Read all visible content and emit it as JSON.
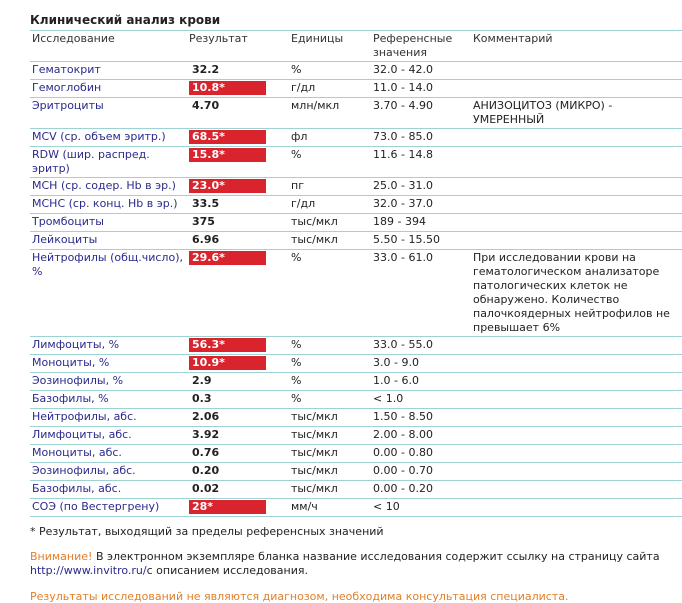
{
  "title": "Клинический анализ крови",
  "headers": {
    "test": "Исследование",
    "result": "Результат",
    "units": "Единицы",
    "ref": "Референсные значения",
    "comment": "Комментарий"
  },
  "rows": [
    {
      "name": "Гематокрит",
      "result": "32.2",
      "flag": false,
      "units": "%",
      "ref": "32.0 - 42.0",
      "comment": ""
    },
    {
      "name": "Гемоглобин",
      "result": "10.8*",
      "flag": true,
      "units": "г/дл",
      "ref": "11.0 - 14.0",
      "comment": ""
    },
    {
      "name": "Эритроциты",
      "result": "4.70",
      "flag": false,
      "units": "млн/мкл",
      "ref": "3.70 - 4.90",
      "comment": "АНИЗОЦИТОЗ (МИКРО) - УМЕРЕННЫЙ"
    },
    {
      "name": "MCV (ср. объем эритр.)",
      "result": "68.5*",
      "flag": true,
      "units": "фл",
      "ref": "73.0 - 85.0",
      "comment": ""
    },
    {
      "name": "RDW (шир. распред. эритр)",
      "result": "15.8*",
      "flag": true,
      "units": "%",
      "ref": "11.6 - 14.8",
      "comment": ""
    },
    {
      "name": "MCH (ср. содер. Hb в эр.)",
      "result": "23.0*",
      "flag": true,
      "units": "пг",
      "ref": "25.0 - 31.0",
      "comment": ""
    },
    {
      "name": "MCHC (ср. конц. Hb в эр.)",
      "result": "33.5",
      "flag": false,
      "units": "г/дл",
      "ref": "32.0 - 37.0",
      "comment": ""
    },
    {
      "name": "Тромбоциты",
      "result": "375",
      "flag": false,
      "units": "тыс/мкл",
      "ref": "189 - 394",
      "comment": ""
    },
    {
      "name": "Лейкоциты",
      "result": "6.96",
      "flag": false,
      "units": "тыс/мкл",
      "ref": "5.50 - 15.50",
      "comment": ""
    },
    {
      "name": "Нейтрофилы (общ.число), %",
      "result": "29.6*",
      "flag": true,
      "units": "%",
      "ref": "33.0 - 61.0",
      "comment": "При исследовании крови на гематологическом анализаторе патологических клеток не обнаружено. Количество палочкоядерных нейтрофилов не превышает 6%"
    },
    {
      "name": "Лимфоциты, %",
      "result": "56.3*",
      "flag": true,
      "units": "%",
      "ref": "33.0 - 55.0",
      "comment": ""
    },
    {
      "name": "Моноциты, %",
      "result": "10.9*",
      "flag": true,
      "units": "%",
      "ref": "3.0 - 9.0",
      "comment": ""
    },
    {
      "name": "Эозинофилы, %",
      "result": "2.9",
      "flag": false,
      "units": "%",
      "ref": "1.0 - 6.0",
      "comment": ""
    },
    {
      "name": "Базофилы, %",
      "result": "0.3",
      "flag": false,
      "units": "%",
      "ref": "< 1.0",
      "comment": ""
    },
    {
      "name": "Нейтрофилы, абс.",
      "result": "2.06",
      "flag": false,
      "units": "тыс/мкл",
      "ref": "1.50 - 8.50",
      "comment": ""
    },
    {
      "name": "Лимфоциты, абс.",
      "result": "3.92",
      "flag": false,
      "units": "тыс/мкл",
      "ref": "2.00 - 8.00",
      "comment": ""
    },
    {
      "name": "Моноциты, абс.",
      "result": "0.76",
      "flag": false,
      "units": "тыс/мкл",
      "ref": "0.00 - 0.80",
      "comment": ""
    },
    {
      "name": "Эозинофилы, абс.",
      "result": "0.20",
      "flag": false,
      "units": "тыс/мкл",
      "ref": "0.00 - 0.70",
      "comment": ""
    },
    {
      "name": "Базофилы, абс.",
      "result": "0.02",
      "flag": false,
      "units": "тыс/мкл",
      "ref": "0.00 - 0.20",
      "comment": ""
    },
    {
      "name": "СОЭ (по Вестергрену)",
      "result": "28*",
      "flag": true,
      "units": "мм/ч",
      "ref": "< 10",
      "comment": ""
    }
  ],
  "footnote": "* Результат, выходящий за пределы референсных значений",
  "warning": {
    "label": "Внимание!",
    "text": " В электронном экземпляре бланка название исследования содержит ссылку на страницу сайта ",
    "link": "http://www.invitro.ru/",
    "text2": "с описанием исследования."
  },
  "disclaimer": "Результаты исследований не являются диагнозом, необходима консультация специалиста.",
  "colors": {
    "flag": "#d9232d",
    "border": "#9fd3d3",
    "link": "#2a2a8c",
    "orange": "#e0802a"
  }
}
